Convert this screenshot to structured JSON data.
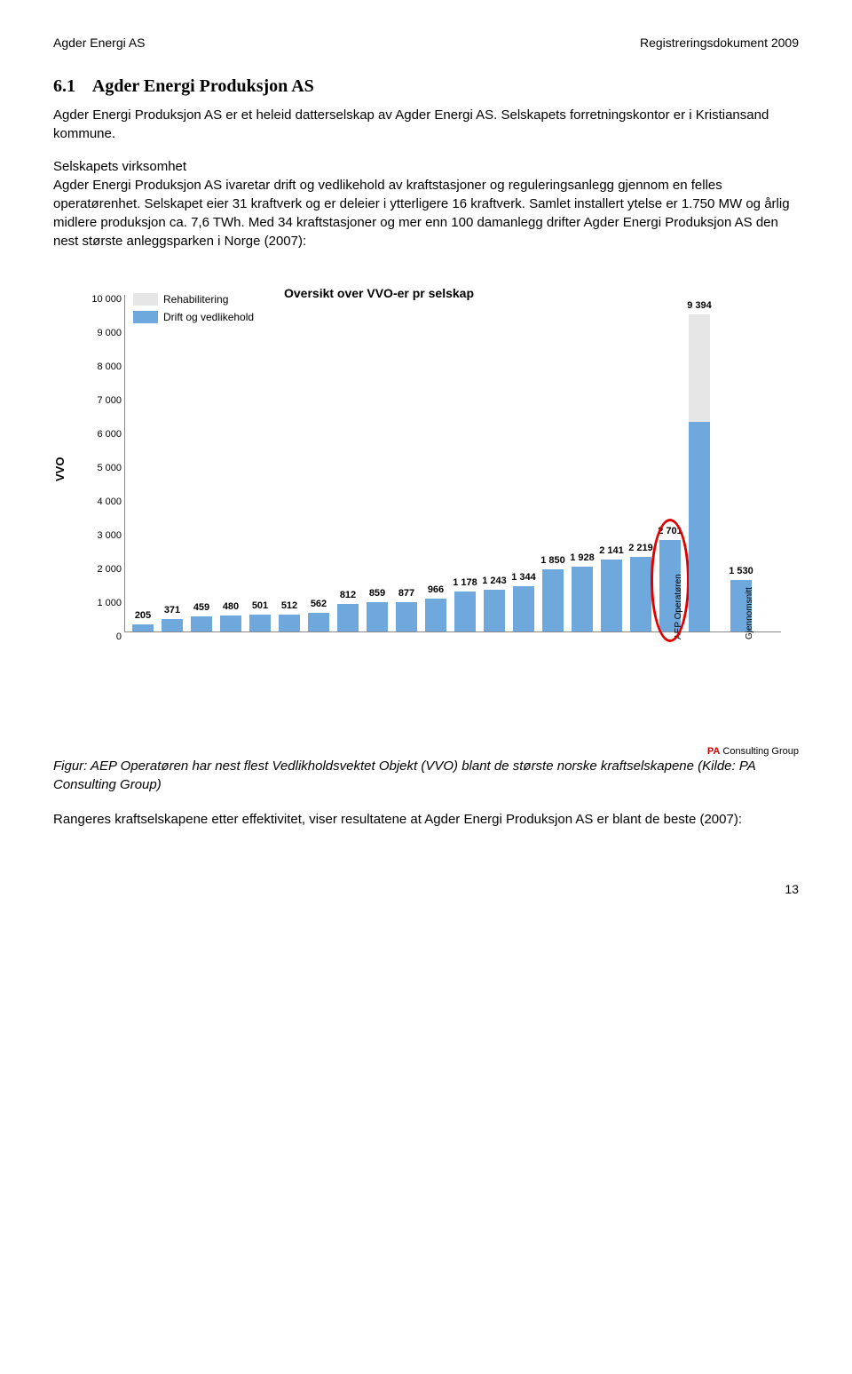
{
  "header": {
    "left": "Agder Energi AS",
    "right": "Registreringsdokument 2009"
  },
  "section": {
    "number": "6.1",
    "title": "Agder Energi Produksjon AS",
    "para1": "Agder Energi Produksjon AS er et heleid datterselskap av Agder Energi AS. Selskapets forretningskontor er i Kristiansand kommune.",
    "subhead": "Selskapets virksomhet",
    "para2": "Agder Energi Produksjon AS ivaretar drift og vedlikehold av kraftstasjoner og reguleringsanlegg gjennom en felles operatørenhet. Selskapet eier 31 kraftverk og er deleier i ytterligere 16 kraftverk. Samlet installert ytelse er 1.750 MW og årlig midlere produksjon ca. 7,6 TWh. Med 34 kraftstasjoner og mer enn 100 damanlegg drifter Agder Energi Produksjon AS den nest største anleggsparken i Norge (2007):"
  },
  "chart": {
    "title": "Oversikt over VVO-er pr selskap",
    "yAxisLabel": "VVO",
    "ymax": 10000,
    "ytickStep": 1000,
    "yticks": [
      "0",
      "1 000",
      "2 000",
      "3 000",
      "4 000",
      "5 000",
      "6 000",
      "7 000",
      "8 000",
      "9 000",
      "10 000"
    ],
    "legend": [
      {
        "label": "Rehabilitering",
        "color": "#e6e6e6"
      },
      {
        "label": "Drift og vedlikehold",
        "color": "#6fa8dc"
      }
    ],
    "barColor": "#6fa8dc",
    "rehabColor": "#e6e6e6",
    "bars": [
      {
        "label": "205",
        "drift": 205,
        "xlabel": ""
      },
      {
        "label": "371",
        "drift": 371,
        "xlabel": ""
      },
      {
        "label": "459",
        "drift": 459,
        "xlabel": ""
      },
      {
        "label": "480",
        "drift": 480,
        "xlabel": ""
      },
      {
        "label": "501",
        "drift": 501,
        "xlabel": ""
      },
      {
        "label": "512",
        "drift": 512,
        "xlabel": ""
      },
      {
        "label": "562",
        "drift": 562,
        "xlabel": ""
      },
      {
        "label": "812",
        "drift": 812,
        "xlabel": ""
      },
      {
        "label": "859",
        "drift": 859,
        "xlabel": ""
      },
      {
        "label": "877",
        "drift": 877,
        "xlabel": ""
      },
      {
        "label": "966",
        "drift": 966,
        "xlabel": ""
      },
      {
        "label": "1 178",
        "drift": 1178,
        "xlabel": ""
      },
      {
        "label": "1 243",
        "drift": 1243,
        "xlabel": ""
      },
      {
        "label": "1 344",
        "drift": 1344,
        "xlabel": ""
      },
      {
        "label": "1 850",
        "drift": 1850,
        "xlabel": ""
      },
      {
        "label": "1 928",
        "drift": 1928,
        "xlabel": ""
      },
      {
        "label": "2 141",
        "drift": 2141,
        "xlabel": ""
      },
      {
        "label": "2 219",
        "drift": 2219,
        "xlabel": ""
      },
      {
        "label": "2 701",
        "drift": 2701,
        "xlabel": "AEP Operatøren",
        "highlight": true
      },
      {
        "label": "9 394",
        "drift": 6200,
        "rehab": 3194,
        "xlabel": ""
      },
      {
        "label": "1 530",
        "drift": 1530,
        "xlabel": "Gjennomsnitt",
        "gap": true
      }
    ],
    "paLogo": {
      "brand": "PA",
      "rest": "Consulting Group"
    }
  },
  "caption": "Figur: AEP Operatøren har nest flest Vedlikholdsvektet Objekt (VVO) blant de største norske kraftselskapene (Kilde: PA Consulting Group)",
  "closingPara": "Rangeres kraftselskapene etter effektivitet, viser resultatene at Agder Energi Produksjon AS er blant de beste (2007):",
  "pageNum": "13"
}
